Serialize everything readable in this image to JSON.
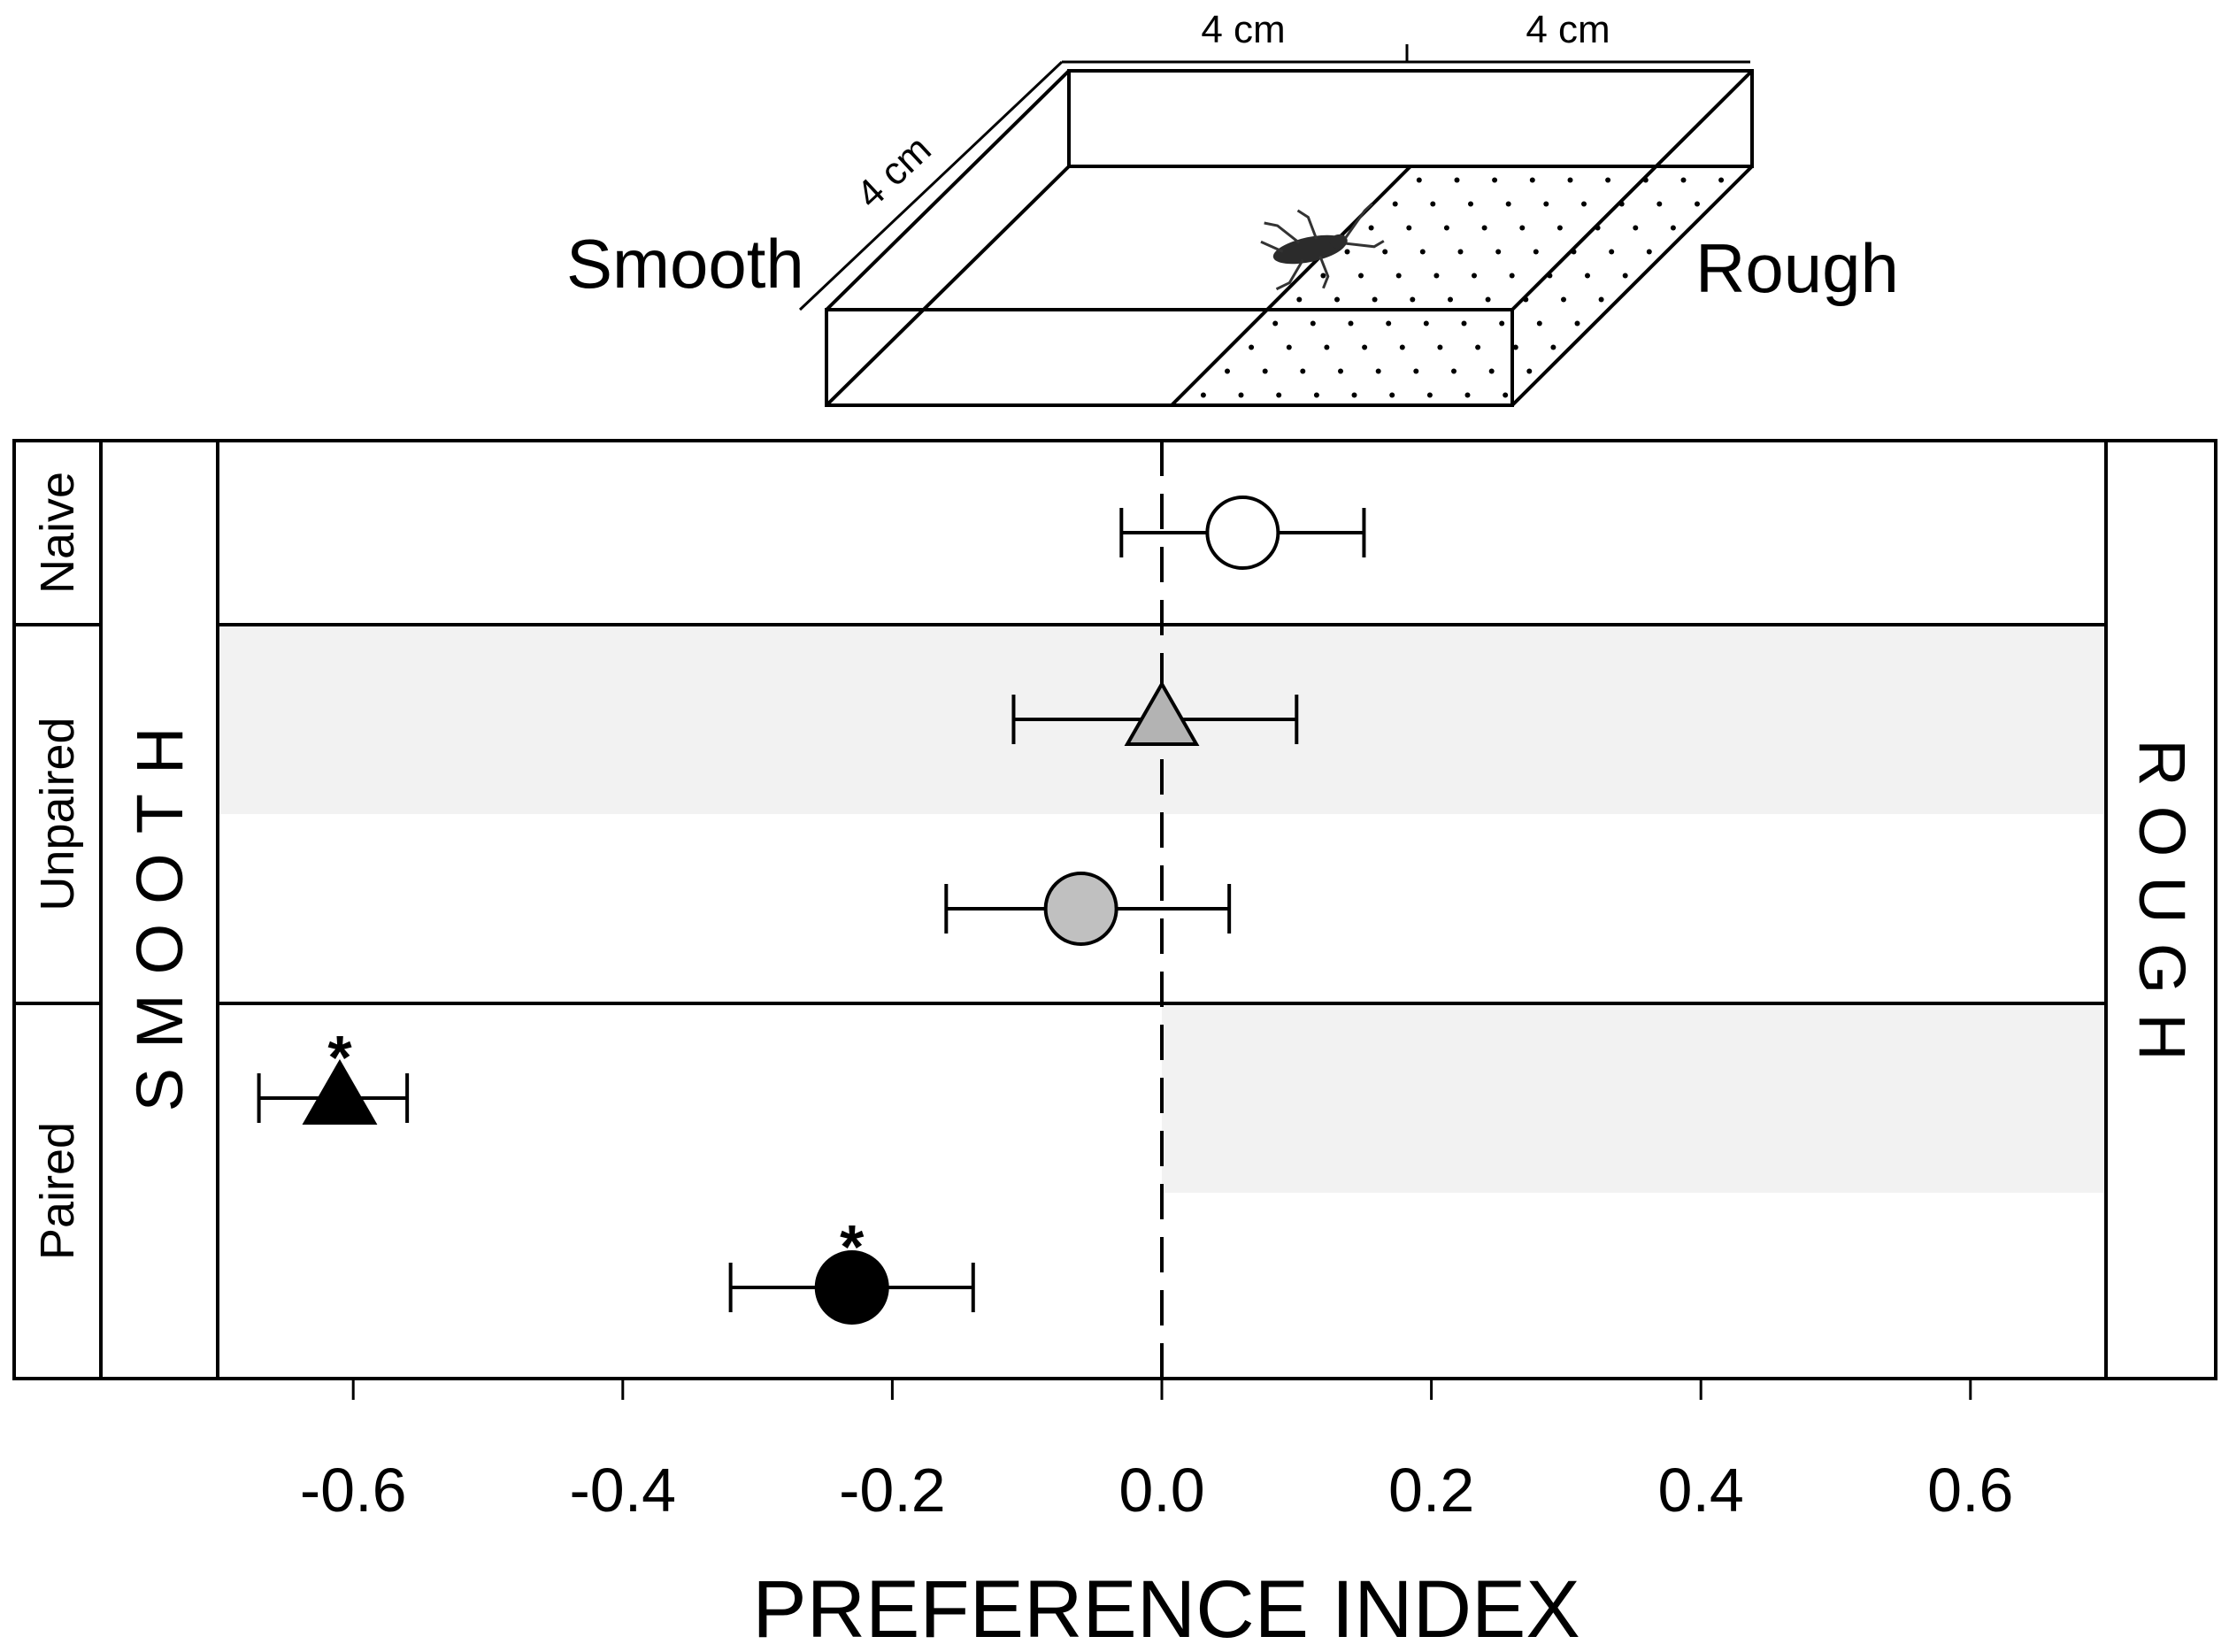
{
  "diagram": {
    "dim_top_left": "4 cm",
    "dim_top_right": "4 cm",
    "dim_side": "4 cm",
    "label_smooth": "Smooth",
    "label_rough": "Rough"
  },
  "chart_data": {
    "type": "scatter",
    "xlabel": "PREFERENCE INDEX",
    "xlim": [
      -0.7,
      0.7
    ],
    "xticks": [
      -0.6,
      -0.4,
      -0.2,
      0.0,
      0.2,
      0.4,
      0.6
    ],
    "xtick_labels": [
      "-0.6",
      "-0.4",
      "-0.2",
      "0.0",
      "0.2",
      "0.4",
      "0.6"
    ],
    "reference_line": 0.0,
    "left_side_label": "SMOOTH",
    "right_side_label": "ROUGH",
    "groups": [
      {
        "label": "Naive",
        "rows": 1
      },
      {
        "label": "Unpaired",
        "rows": 2
      },
      {
        "label": "Paired",
        "rows": 2
      }
    ],
    "points": [
      {
        "group": "Naive",
        "row": 0,
        "marker": "circle",
        "fill": "#ffffff",
        "x": 0.06,
        "err_low": -0.03,
        "err_high": 0.15,
        "significance": ""
      },
      {
        "group": "Unpaired",
        "row": 1,
        "marker": "triangle",
        "fill": "#b3b3b3",
        "x": 0.0,
        "err_low": -0.11,
        "err_high": 0.1,
        "significance": ""
      },
      {
        "group": "Unpaired",
        "row": 2,
        "marker": "circle",
        "fill": "#c0c0c0",
        "x": -0.06,
        "err_low": -0.16,
        "err_high": 0.05,
        "significance": ""
      },
      {
        "group": "Paired",
        "row": 3,
        "marker": "triangle",
        "fill": "#000000",
        "x": -0.61,
        "err_low": -0.67,
        "err_high": -0.56,
        "significance": "*"
      },
      {
        "group": "Paired",
        "row": 4,
        "marker": "circle",
        "fill": "#000000",
        "x": -0.23,
        "err_low": -0.32,
        "err_high": -0.14,
        "significance": "*"
      }
    ],
    "shading": [
      {
        "row": 1,
        "from": -0.7,
        "to": 0.7,
        "color": "#f2f2f2"
      },
      {
        "row": 3,
        "from": 0.0,
        "to": 0.7,
        "color": "#f2f2f2"
      }
    ]
  }
}
